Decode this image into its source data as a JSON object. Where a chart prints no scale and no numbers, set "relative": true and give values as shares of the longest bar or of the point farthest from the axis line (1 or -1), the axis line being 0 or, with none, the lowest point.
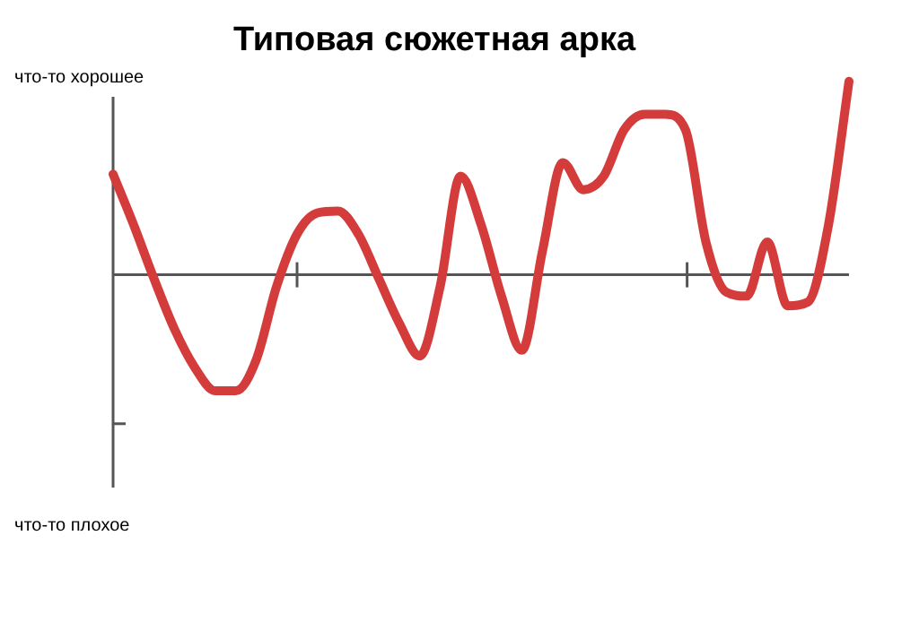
{
  "chart_data": {
    "type": "line",
    "title": "Типовая сюжетная арка",
    "relative": true,
    "color": "#d43c3c",
    "line_style": "solid",
    "marker": "none",
    "legend": false,
    "annotations": [
      "что-то хорошее",
      "что-то плохое"
    ],
    "categories": [
      null,
      null,
      null,
      null,
      null,
      null,
      null,
      null,
      null,
      null,
      null,
      null,
      null,
      null,
      null,
      null,
      null,
      null,
      null,
      null,
      null,
      null,
      null,
      null,
      null,
      null,
      null,
      null,
      null,
      null,
      null,
      null,
      null,
      null,
      null,
      null,
      null
    ],
    "values": [
      0.52,
      0.26,
      -0.02,
      -0.28,
      -0.48,
      -0.6,
      -0.6,
      -0.44,
      -0.06,
      0.21,
      0.32,
      0.33,
      0.21,
      -0.02,
      -0.25,
      -0.42,
      -0.06,
      0.51,
      0.26,
      -0.11,
      -0.39,
      0.12,
      0.58,
      0.44,
      0.51,
      0.75,
      0.83,
      0.83,
      0.75,
      0.17,
      -0.09,
      -0.11,
      0.17,
      -0.16,
      -0.14,
      0.26,
      1.0
    ]
  }
}
